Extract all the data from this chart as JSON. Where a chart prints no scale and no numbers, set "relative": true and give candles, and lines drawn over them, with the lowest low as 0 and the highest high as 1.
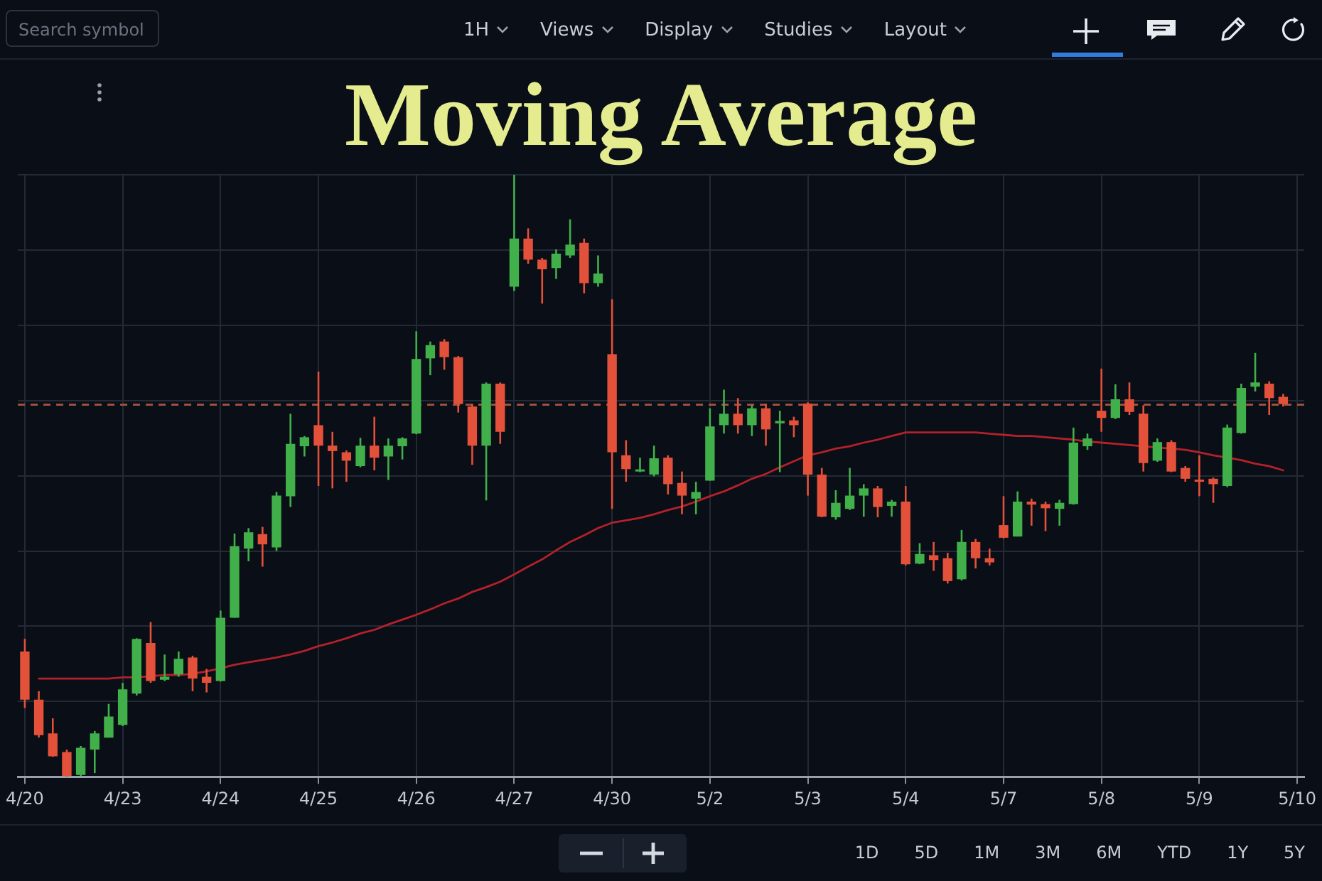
{
  "chart_data": {
    "type": "candlestick",
    "title": "Moving Average",
    "categories": [
      "4/20",
      null,
      null,
      null,
      null,
      null,
      null,
      "4/23",
      null,
      null,
      null,
      null,
      null,
      null,
      "4/24",
      null,
      null,
      null,
      null,
      null,
      null,
      "4/25",
      null,
      null,
      null,
      null,
      null,
      null,
      "4/26",
      null,
      null,
      null,
      null,
      null,
      null,
      "4/27",
      null,
      null,
      null,
      null,
      null,
      null,
      "4/30",
      null,
      null,
      null,
      null,
      null,
      null,
      "5/2",
      null,
      null,
      null,
      null,
      null,
      null,
      "5/3",
      null,
      null,
      null,
      null,
      null,
      null,
      "5/4",
      null,
      null,
      null,
      null,
      null,
      null,
      "5/7",
      null,
      null,
      null,
      null,
      null,
      null,
      "5/8",
      null,
      null,
      null,
      null,
      null,
      null,
      "5/9",
      null,
      null,
      null,
      null,
      null,
      null,
      "5/10"
    ],
    "relative": true,
    "series": [
      {
        "type": "candlestick",
        "ohlc": [
          [
            0.208,
            0.229,
            0.114,
            0.128
          ],
          [
            0.128,
            0.142,
            0.065,
            0.069
          ],
          [
            0.072,
            0.097,
            0.033,
            0.034
          ],
          [
            0.041,
            0.045,
            0,
            0.001
          ],
          [
            0.003,
            0.051,
            0.001,
            0.048
          ],
          [
            0.045,
            0.076,
            0.006,
            0.072
          ],
          [
            0.065,
            0.121,
            0.065,
            0.1
          ],
          [
            0.086,
            0.156,
            0.084,
            0.145
          ],
          [
            0.138,
            0.23,
            0.135,
            0.229
          ],
          [
            0.222,
            0.257,
            0.156,
            0.159
          ],
          [
            0.161,
            0.203,
            0.159,
            0.166
          ],
          [
            0.17,
            0.208,
            0.166,
            0.196
          ],
          [
            0.198,
            0.201,
            0.142,
            0.163
          ],
          [
            0.166,
            0.179,
            0.14,
            0.156
          ],
          [
            0.159,
            0.276,
            0.158,
            0.264
          ],
          [
            0.264,
            0.404,
            0.264,
            0.383
          ],
          [
            0.379,
            0.413,
            0.358,
            0.406
          ],
          [
            0.403,
            0.415,
            0.349,
            0.386
          ],
          [
            0.381,
            0.473,
            0.375,
            0.467
          ],
          [
            0.466,
            0.603,
            0.448,
            0.553
          ],
          [
            0.549,
            0.566,
            0.532,
            0.564
          ],
          [
            0.584,
            0.673,
            0.483,
            0.55
          ],
          [
            0.55,
            0.573,
            0.479,
            0.541
          ],
          [
            0.539,
            0.542,
            0.49,
            0.525
          ],
          [
            0.516,
            0.563,
            0.514,
            0.55
          ],
          [
            0.55,
            0.598,
            0.509,
            0.53
          ],
          [
            0.532,
            0.562,
            0.493,
            0.55
          ],
          [
            0.549,
            0.564,
            0.527,
            0.562
          ],
          [
            0.57,
            0.74,
            0.569,
            0.694
          ],
          [
            0.695,
            0.723,
            0.667,
            0.717
          ],
          [
            0.723,
            0.727,
            0.676,
            0.697
          ],
          [
            0.697,
            0.699,
            0.605,
            0.619
          ],
          [
            0.615,
            0.619,
            0.518,
            0.55
          ],
          [
            0.55,
            0.655,
            0.459,
            0.653
          ],
          [
            0.653,
            0.655,
            0.553,
            0.573
          ],
          [
            0.814,
            1.0,
            0.807,
            0.894
          ],
          [
            0.894,
            0.911,
            0.852,
            0.859
          ],
          [
            0.859,
            0.862,
            0.786,
            0.843
          ],
          [
            0.845,
            0.876,
            0.827,
            0.869
          ],
          [
            0.866,
            0.926,
            0.862,
            0.884
          ],
          [
            0.887,
            0.894,
            0.803,
            0.82
          ],
          [
            0.82,
            0.866,
            0.814,
            0.836
          ],
          [
            0.702,
            0.793,
            0.445,
            0.539
          ],
          [
            0.534,
            0.559,
            0.49,
            0.511
          ],
          [
            0.507,
            0.53,
            0.506,
            0.51
          ],
          [
            0.502,
            0.55,
            0.499,
            0.529
          ],
          [
            0.53,
            0.534,
            0.469,
            0.486
          ],
          [
            0.488,
            0.507,
            0.436,
            0.467
          ],
          [
            0.462,
            0.49,
            0.436,
            0.473
          ],
          [
            0.492,
            0.612,
            0.492,
            0.582
          ],
          [
            0.584,
            0.643,
            0.57,
            0.603
          ],
          [
            0.603,
            0.629,
            0.57,
            0.584
          ],
          [
            0.584,
            0.617,
            0.566,
            0.612
          ],
          [
            0.612,
            0.619,
            0.55,
            0.577
          ],
          [
            0.587,
            0.608,
            0.506,
            0.591
          ],
          [
            0.592,
            0.598,
            0.564,
            0.584
          ],
          [
            0.62,
            0.622,
            0.467,
            0.502
          ],
          [
            0.502,
            0.513,
            0.431,
            0.432
          ],
          [
            0.431,
            0.476,
            0.427,
            0.455
          ],
          [
            0.445,
            0.513,
            0.443,
            0.467
          ],
          [
            0.467,
            0.486,
            0.432,
            0.479
          ],
          [
            0.479,
            0.483,
            0.431,
            0.448
          ],
          [
            0.45,
            0.46,
            0.432,
            0.457
          ],
          [
            0.457,
            0.483,
            0.351,
            0.353
          ],
          [
            0.354,
            0.388,
            0.353,
            0.37
          ],
          [
            0.368,
            0.39,
            0.342,
            0.36
          ],
          [
            0.363,
            0.372,
            0.321,
            0.325
          ],
          [
            0.328,
            0.41,
            0.326,
            0.39
          ],
          [
            0.39,
            0.395,
            0.346,
            0.363
          ],
          [
            0.363,
            0.379,
            0.351,
            0.356
          ],
          [
            0.418,
            0.466,
            0.396,
            0.397
          ],
          [
            0.399,
            0.474,
            0.399,
            0.457
          ],
          [
            0.457,
            0.462,
            0.417,
            0.452
          ],
          [
            0.453,
            0.457,
            0.408,
            0.446
          ],
          [
            0.445,
            0.46,
            0.417,
            0.455
          ],
          [
            0.453,
            0.58,
            0.452,
            0.555
          ],
          [
            0.549,
            0.57,
            0.543,
            0.562
          ],
          [
            0.608,
            0.678,
            0.573,
            0.596
          ],
          [
            0.596,
            0.652,
            0.594,
            0.627
          ],
          [
            0.627,
            0.655,
            0.601,
            0.606
          ],
          [
            0.603,
            0.617,
            0.507,
            0.521
          ],
          [
            0.525,
            0.562,
            0.523,
            0.556
          ],
          [
            0.556,
            0.559,
            0.506,
            0.507
          ],
          [
            0.513,
            0.516,
            0.49,
            0.495
          ],
          [
            0.493,
            0.534,
            0.466,
            0.49
          ],
          [
            0.495,
            0.497,
            0.455,
            0.486
          ],
          [
            0.483,
            0.585,
            0.481,
            0.58
          ],
          [
            0.571,
            0.653,
            0.57,
            0.646
          ],
          [
            0.648,
            0.704,
            0.64,
            0.655
          ],
          [
            0.653,
            0.657,
            0.601,
            0.629
          ],
          [
            0.631,
            0.636,
            0.615,
            0.619
          ],
          null
        ],
        "colors": [
          "#e4513a",
          "#e4513a",
          "#e4513a",
          "#e4513a",
          "#41b04b",
          "#41b04b",
          "#41b04b",
          "#41b04b",
          "#41b04b",
          "#e4513a",
          "#41b04b",
          "#41b04b",
          "#e4513a",
          "#e4513a",
          "#41b04b",
          "#41b04b",
          "#41b04b",
          "#e4513a",
          "#41b04b",
          "#41b04b",
          "#41b04b",
          "#e4513a",
          "#e4513a",
          "#e4513a",
          "#41b04b",
          "#e4513a",
          "#41b04b",
          "#41b04b",
          "#41b04b",
          "#41b04b",
          "#e4513a",
          "#e4513a",
          "#e4513a",
          "#41b04b",
          "#e4513a",
          "#41b04b",
          "#e4513a",
          "#e4513a",
          "#41b04b",
          "#41b04b",
          "#e4513a",
          "#41b04b",
          "#e4513a",
          "#e4513a",
          "#41b04b",
          "#41b04b",
          "#e4513a",
          "#e4513a",
          "#41b04b",
          "#41b04b",
          "#41b04b",
          "#e4513a",
          "#41b04b",
          "#e4513a",
          "#41b04b",
          "#e4513a",
          "#e4513a",
          "#e4513a",
          "#41b04b",
          "#41b04b",
          "#41b04b",
          "#e4513a",
          "#41b04b",
          "#e4513a",
          "#41b04b",
          "#e4513a",
          "#e4513a",
          "#41b04b",
          "#e4513a",
          "#e4513a",
          "#e4513a",
          "#41b04b",
          "#e4513a",
          "#e4513a",
          "#41b04b",
          "#41b04b",
          "#41b04b",
          "#e4513a",
          "#41b04b",
          "#e4513a",
          "#e4513a",
          "#41b04b",
          "#e4513a",
          "#e4513a",
          "#e4513a",
          "#e4513a",
          "#41b04b",
          "#41b04b",
          "#41b04b",
          "#e4513a",
          "#e4513a",
          null
        ]
      },
      {
        "type": "line",
        "color": "#b3212b",
        "values": [
          null,
          0.163,
          0.163,
          0.163,
          0.163,
          0.163,
          0.163,
          0.165,
          0.165,
          0.167,
          0.169,
          0.169,
          0.171,
          0.175,
          0.18,
          0.186,
          0.19,
          0.194,
          0.198,
          0.203,
          0.209,
          0.217,
          0.223,
          0.23,
          0.238,
          0.244,
          0.253,
          0.261,
          0.269,
          0.278,
          0.288,
          0.296,
          0.307,
          0.315,
          0.324,
          0.336,
          0.349,
          0.361,
          0.376,
          0.39,
          0.401,
          0.413,
          0.422,
          0.426,
          0.43,
          0.436,
          0.443,
          0.449,
          0.457,
          0.466,
          0.474,
          0.484,
          0.495,
          0.503,
          0.514,
          0.524,
          0.534,
          0.539,
          0.545,
          0.549,
          0.555,
          0.56,
          0.566,
          0.572,
          0.572,
          0.572,
          0.572,
          0.572,
          0.572,
          0.57,
          0.568,
          0.566,
          0.566,
          0.564,
          0.562,
          0.56,
          0.557,
          0.555,
          0.553,
          0.551,
          0.549,
          0.547,
          0.545,
          0.543,
          0.539,
          0.534,
          0.53,
          0.526,
          0.52,
          0.516,
          0.509,
          null
        ]
      }
    ],
    "ref_lines": [
      {
        "axis": "y",
        "value": 0.618,
        "color": "#a8553d",
        "line_style": "dashed"
      }
    ],
    "annotations": [
      "Search symbol",
      "1H",
      "Views",
      "Display",
      "Studies",
      "Layout",
      "1D",
      "5D",
      "1M",
      "3M",
      "6M",
      "YTD",
      "1Y",
      "5Y"
    ],
    "grid": true,
    "legend": false
  }
}
